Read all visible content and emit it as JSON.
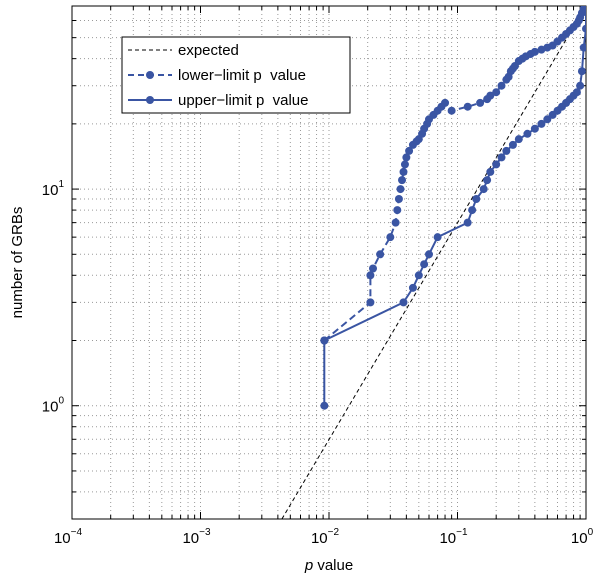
{
  "chart_data": {
    "type": "line",
    "xscale": "log",
    "yscale": "log",
    "xlim": [
      0.0001,
      1
    ],
    "ylim": [
      0.3,
      70
    ],
    "xticks": [
      {
        "mantissa": "10",
        "exp": "−4",
        "value": 0.0001
      },
      {
        "mantissa": "10",
        "exp": "−3",
        "value": 0.001
      },
      {
        "mantissa": "10",
        "exp": "−2",
        "value": 0.01
      },
      {
        "mantissa": "10",
        "exp": "−1",
        "value": 0.1
      },
      {
        "mantissa": "10",
        "exp": "0",
        "value": 1
      }
    ],
    "yticks": [
      {
        "mantissa": "10",
        "exp": "0",
        "value": 1
      },
      {
        "mantissa": "10",
        "exp": "1",
        "value": 10
      }
    ],
    "xlabel_italic": "p",
    "xlabel_rest": " value",
    "ylabel": "number of GRBs",
    "grid": true,
    "legend_position": "top-left",
    "colors": {
      "series": "#3a55a3",
      "expected": "#000000",
      "grid": "#9a9a9a"
    },
    "series": [
      {
        "name": "expected",
        "style": "dashed",
        "x": [
          0.0043,
          1
        ],
        "y": [
          0.3,
          70
        ]
      },
      {
        "name": "lower−limit p  value",
        "style": "dashed-marker",
        "x": [
          0.0092,
          0.021,
          0.021,
          0.022,
          0.025,
          0.03,
          0.033,
          0.034,
          0.035,
          0.036,
          0.037,
          0.038,
          0.039,
          0.04,
          0.042,
          0.045,
          0.048,
          0.05,
          0.053,
          0.055,
          0.058,
          0.06,
          0.065,
          0.07,
          0.075,
          0.08,
          0.09,
          0.12,
          0.15,
          0.17,
          0.18,
          0.2,
          0.22,
          0.24,
          0.25,
          0.26,
          0.27,
          0.28,
          0.3,
          0.32,
          0.34,
          0.37,
          0.4,
          0.45,
          0.5,
          0.55,
          0.6,
          0.65,
          0.7,
          0.75,
          0.8,
          0.85,
          0.88,
          0.9,
          0.93,
          0.96,
          1.0
        ],
        "y": [
          2,
          3,
          4,
          4.3,
          5,
          6,
          7,
          8,
          9,
          10,
          11,
          12,
          13,
          14,
          15,
          16,
          16.6,
          17,
          18,
          19,
          20,
          21,
          22,
          23,
          24,
          25,
          23,
          24,
          25,
          26,
          27,
          28,
          30,
          32,
          33,
          35,
          36,
          37,
          39,
          40,
          41,
          42,
          43,
          44,
          45,
          46,
          48,
          50,
          52,
          54,
          56,
          58,
          60,
          62,
          65,
          68,
          70
        ]
      },
      {
        "name": "upper−limit p  value",
        "style": "solid-marker",
        "x": [
          0.0092,
          0.0092,
          0.038,
          0.045,
          0.05,
          0.055,
          0.06,
          0.07,
          0.12,
          0.13,
          0.14,
          0.16,
          0.17,
          0.18,
          0.2,
          0.22,
          0.24,
          0.27,
          0.3,
          0.35,
          0.4,
          0.45,
          0.5,
          0.55,
          0.6,
          0.65,
          0.7,
          0.75,
          0.8,
          0.85,
          0.9,
          0.93,
          0.96,
          1.0,
          1.0
        ],
        "y": [
          1,
          2,
          3,
          3.5,
          4,
          4.5,
          5,
          6,
          7,
          8,
          9,
          10,
          11,
          12,
          13,
          14,
          15,
          16,
          17,
          18,
          19,
          20,
          21,
          22,
          23,
          24,
          25,
          26,
          27,
          28,
          30,
          35,
          45,
          55,
          68
        ]
      }
    ]
  }
}
